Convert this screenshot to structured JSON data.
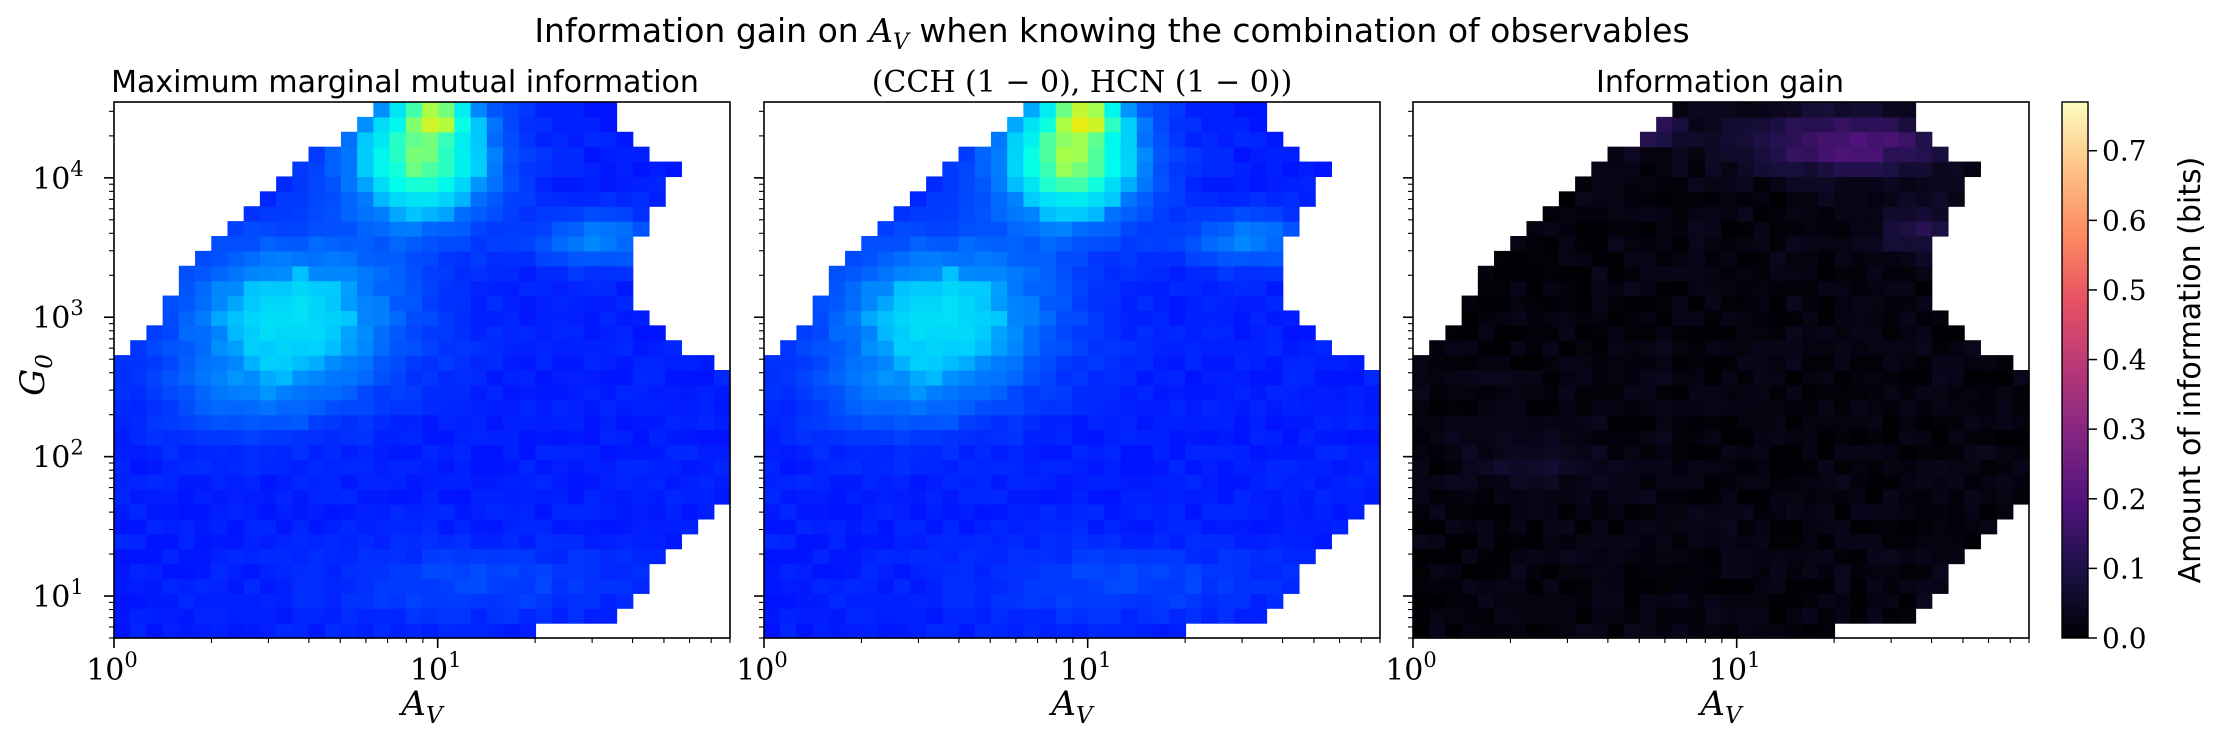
{
  "figure": {
    "title_prefix": "Information gain on ",
    "title_var": "A",
    "title_var_sub": "V",
    "title_suffix": " when knowing the combination of observables"
  },
  "chart_data": [
    {
      "type": "heatmap",
      "title": "Maximum marginal mutual information",
      "xlabel": "A",
      "xlabel_sub": "V",
      "ylabel": "G",
      "ylabel_sub": "0",
      "xscale": "log",
      "yscale": "log",
      "xlim": [
        1,
        80
      ],
      "ylim": [
        5,
        35000
      ],
      "colormap": "jet",
      "vmin": 0,
      "vmax": 0.77,
      "x_ticks": [
        {
          "value": 1,
          "base": "10",
          "exp": "0"
        },
        {
          "value": 10,
          "base": "10",
          "exp": "1"
        }
      ],
      "y_ticks": [
        {
          "value": 10,
          "base": "10",
          "exp": "1"
        },
        {
          "value": 100,
          "base": "10",
          "exp": "2"
        },
        {
          "value": 1000,
          "base": "10",
          "exp": "3"
        },
        {
          "value": 10000,
          "base": "10",
          "exp": "4"
        }
      ],
      "grid": false,
      "peak": {
        "x": 10,
        "y": 25000,
        "value": 0.57
      }
    },
    {
      "type": "heatmap",
      "title": "(CCH (1 − 0), HCN (1 − 0))",
      "xlabel": "A",
      "xlabel_sub": "V",
      "xscale": "log",
      "yscale": "log",
      "xlim": [
        1,
        80
      ],
      "ylim": [
        5,
        35000
      ],
      "colormap": "jet",
      "vmin": 0,
      "vmax": 0.77,
      "x_ticks": [
        {
          "value": 1,
          "base": "10",
          "exp": "0"
        },
        {
          "value": 10,
          "base": "10",
          "exp": "1"
        }
      ],
      "grid": false,
      "peak": {
        "x": 10,
        "y": 25000,
        "value": 0.62
      }
    },
    {
      "type": "heatmap",
      "title": "Information gain",
      "xlabel": "A",
      "xlabel_sub": "V",
      "xscale": "log",
      "yscale": "log",
      "xlim": [
        1,
        80
      ],
      "ylim": [
        5,
        35000
      ],
      "colormap": "magma",
      "vmin": 0,
      "vmax": 0.77,
      "x_ticks": [
        {
          "value": 1,
          "base": "10",
          "exp": "0"
        },
        {
          "value": 10,
          "base": "10",
          "exp": "1"
        }
      ],
      "grid": false,
      "peak": {
        "x": 20,
        "y": 18000,
        "value": 0.2
      }
    }
  ],
  "colorbar": {
    "label": "Amount of information (bits)",
    "colormap": "magma",
    "vmin": 0,
    "vmax": 0.77,
    "ticks": [
      "0.0",
      "0.1",
      "0.2",
      "0.3",
      "0.4",
      "0.5",
      "0.6",
      "0.7"
    ]
  }
}
